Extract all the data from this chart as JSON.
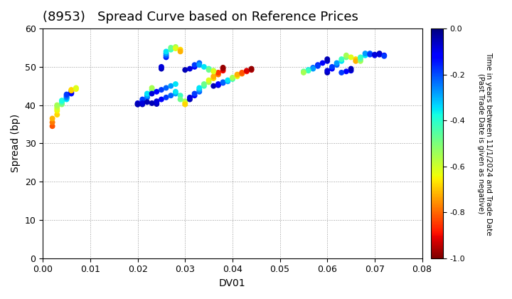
{
  "title": "(8953)   Spread Curve based on Reference Prices",
  "xlabel": "DV01",
  "ylabel": "Spread (bp)",
  "xlim": [
    0.0,
    0.08
  ],
  "ylim": [
    0,
    60
  ],
  "xticks": [
    0.0,
    0.01,
    0.02,
    0.03,
    0.04,
    0.05,
    0.06,
    0.07,
    0.08
  ],
  "yticks": [
    0,
    10,
    20,
    30,
    40,
    50,
    60
  ],
  "colorbar_label_line1": "Time in years between 11/1/2024 and Trade Date",
  "colorbar_label_line2": "(Past Trade Date is given as negative)",
  "cmap": "jet_r",
  "vmin": -1.0,
  "vmax": 0.0,
  "colorbar_ticks": [
    0.0,
    -0.2,
    -0.4,
    -0.6,
    -0.8,
    -1.0
  ],
  "points": [
    [
      0.002,
      34.5,
      -0.82
    ],
    [
      0.002,
      35.5,
      -0.78
    ],
    [
      0.002,
      36.5,
      -0.72
    ],
    [
      0.003,
      37.5,
      -0.68
    ],
    [
      0.003,
      38.5,
      -0.65
    ],
    [
      0.003,
      39.0,
      -0.62
    ],
    [
      0.003,
      39.5,
      -0.58
    ],
    [
      0.003,
      40.0,
      -0.55
    ],
    [
      0.004,
      40.2,
      -0.52
    ],
    [
      0.004,
      40.5,
      -0.48
    ],
    [
      0.004,
      40.8,
      -0.45
    ],
    [
      0.004,
      41.0,
      -0.42
    ],
    [
      0.004,
      41.2,
      -0.38
    ],
    [
      0.005,
      41.5,
      -0.35
    ],
    [
      0.005,
      41.8,
      -0.32
    ],
    [
      0.005,
      42.0,
      -0.28
    ],
    [
      0.005,
      42.2,
      -0.25
    ],
    [
      0.005,
      42.5,
      -0.22
    ],
    [
      0.005,
      42.8,
      -0.18
    ],
    [
      0.006,
      43.0,
      -0.15
    ],
    [
      0.006,
      43.2,
      -0.12
    ],
    [
      0.006,
      43.5,
      -0.1
    ],
    [
      0.006,
      43.8,
      -0.72
    ],
    [
      0.006,
      44.0,
      -0.68
    ],
    [
      0.007,
      44.2,
      -0.65
    ],
    [
      0.007,
      44.5,
      -0.62
    ],
    [
      0.02,
      40.2,
      -0.05
    ],
    [
      0.02,
      40.5,
      -0.08
    ],
    [
      0.021,
      41.0,
      -0.12
    ],
    [
      0.021,
      41.5,
      -0.18
    ],
    [
      0.022,
      42.0,
      -0.22
    ],
    [
      0.022,
      42.5,
      -0.28
    ],
    [
      0.022,
      43.0,
      -0.35
    ],
    [
      0.023,
      43.5,
      -0.42
    ],
    [
      0.023,
      44.0,
      -0.48
    ],
    [
      0.023,
      44.5,
      -0.55
    ],
    [
      0.024,
      40.3,
      -0.05
    ],
    [
      0.024,
      40.8,
      -0.08
    ],
    [
      0.025,
      49.5,
      -0.05
    ],
    [
      0.025,
      50.0,
      -0.08
    ],
    [
      0.026,
      52.5,
      -0.15
    ],
    [
      0.026,
      53.0,
      -0.22
    ],
    [
      0.026,
      53.5,
      -0.28
    ],
    [
      0.026,
      54.0,
      -0.35
    ],
    [
      0.027,
      54.5,
      -0.42
    ],
    [
      0.027,
      55.0,
      -0.48
    ],
    [
      0.028,
      55.2,
      -0.55
    ],
    [
      0.028,
      54.8,
      -0.62
    ],
    [
      0.029,
      54.5,
      -0.68
    ],
    [
      0.029,
      54.0,
      -0.72
    ],
    [
      0.02,
      40.2,
      -0.05
    ],
    [
      0.023,
      43.0,
      -0.08
    ],
    [
      0.024,
      43.5,
      -0.12
    ],
    [
      0.025,
      44.0,
      -0.18
    ],
    [
      0.026,
      44.5,
      -0.22
    ],
    [
      0.027,
      45.0,
      -0.28
    ],
    [
      0.028,
      45.5,
      -0.35
    ],
    [
      0.023,
      40.5,
      -0.05
    ],
    [
      0.024,
      41.0,
      -0.08
    ],
    [
      0.025,
      41.5,
      -0.12
    ],
    [
      0.026,
      42.0,
      -0.18
    ],
    [
      0.027,
      42.5,
      -0.22
    ],
    [
      0.028,
      43.0,
      -0.28
    ],
    [
      0.028,
      43.5,
      -0.35
    ],
    [
      0.029,
      42.5,
      -0.42
    ],
    [
      0.029,
      41.5,
      -0.48
    ],
    [
      0.03,
      41.0,
      -0.55
    ],
    [
      0.03,
      40.5,
      -0.62
    ],
    [
      0.03,
      40.2,
      -0.68
    ],
    [
      0.021,
      40.2,
      -0.05
    ],
    [
      0.021,
      40.5,
      -0.08
    ],
    [
      0.022,
      40.8,
      -0.05
    ],
    [
      0.031,
      41.5,
      -0.05
    ],
    [
      0.031,
      42.0,
      -0.08
    ],
    [
      0.032,
      42.5,
      -0.12
    ],
    [
      0.032,
      43.0,
      -0.18
    ],
    [
      0.033,
      43.5,
      -0.22
    ],
    [
      0.033,
      44.0,
      -0.28
    ],
    [
      0.033,
      44.5,
      -0.35
    ],
    [
      0.034,
      45.0,
      -0.42
    ],
    [
      0.034,
      45.5,
      -0.48
    ],
    [
      0.035,
      46.0,
      -0.55
    ],
    [
      0.035,
      46.5,
      -0.62
    ],
    [
      0.036,
      47.0,
      -0.68
    ],
    [
      0.036,
      47.5,
      -0.72
    ],
    [
      0.037,
      48.0,
      -0.78
    ],
    [
      0.037,
      48.5,
      -0.85
    ],
    [
      0.038,
      49.0,
      -0.9
    ],
    [
      0.038,
      49.5,
      -0.95
    ],
    [
      0.038,
      49.8,
      -0.98
    ],
    [
      0.036,
      45.0,
      -0.05
    ],
    [
      0.037,
      45.2,
      -0.08
    ],
    [
      0.037,
      45.5,
      -0.12
    ],
    [
      0.038,
      45.8,
      -0.18
    ],
    [
      0.038,
      46.0,
      -0.22
    ],
    [
      0.039,
      46.2,
      -0.28
    ],
    [
      0.039,
      46.5,
      -0.35
    ],
    [
      0.04,
      46.8,
      -0.42
    ],
    [
      0.04,
      47.0,
      -0.48
    ],
    [
      0.04,
      47.2,
      -0.55
    ],
    [
      0.041,
      47.5,
      -0.62
    ],
    [
      0.041,
      47.8,
      -0.68
    ],
    [
      0.041,
      48.0,
      -0.72
    ],
    [
      0.042,
      48.2,
      -0.78
    ],
    [
      0.042,
      48.5,
      -0.82
    ],
    [
      0.043,
      48.8,
      -0.88
    ],
    [
      0.043,
      49.0,
      -0.92
    ],
    [
      0.044,
      49.2,
      -0.95
    ],
    [
      0.044,
      49.5,
      -0.98
    ],
    [
      0.03,
      49.2,
      -0.05
    ],
    [
      0.031,
      49.5,
      -0.08
    ],
    [
      0.032,
      50.0,
      -0.12
    ],
    [
      0.032,
      50.5,
      -0.18
    ],
    [
      0.033,
      51.0,
      -0.22
    ],
    [
      0.033,
      50.5,
      -0.28
    ],
    [
      0.034,
      50.0,
      -0.35
    ],
    [
      0.035,
      49.5,
      -0.42
    ],
    [
      0.035,
      49.2,
      -0.48
    ],
    [
      0.036,
      49.0,
      -0.55
    ],
    [
      0.036,
      48.8,
      -0.62
    ],
    [
      0.06,
      48.5,
      -0.05
    ],
    [
      0.06,
      49.0,
      -0.08
    ],
    [
      0.061,
      49.5,
      -0.12
    ],
    [
      0.061,
      50.0,
      -0.18
    ],
    [
      0.062,
      50.5,
      -0.22
    ],
    [
      0.062,
      51.0,
      -0.28
    ],
    [
      0.063,
      51.5,
      -0.35
    ],
    [
      0.063,
      52.0,
      -0.42
    ],
    [
      0.064,
      52.5,
      -0.48
    ],
    [
      0.064,
      53.0,
      -0.55
    ],
    [
      0.065,
      52.5,
      -0.62
    ],
    [
      0.066,
      52.0,
      -0.68
    ],
    [
      0.066,
      51.5,
      -0.72
    ],
    [
      0.067,
      51.5,
      -0.55
    ],
    [
      0.067,
      52.0,
      -0.48
    ],
    [
      0.067,
      52.5,
      -0.42
    ],
    [
      0.068,
      53.0,
      -0.35
    ],
    [
      0.068,
      53.5,
      -0.28
    ],
    [
      0.069,
      53.5,
      -0.22
    ],
    [
      0.069,
      53.2,
      -0.18
    ],
    [
      0.07,
      53.0,
      -0.12
    ],
    [
      0.07,
      53.2,
      -0.08
    ],
    [
      0.071,
      53.5,
      -0.05
    ],
    [
      0.071,
      53.2,
      -0.08
    ],
    [
      0.072,
      53.0,
      -0.12
    ],
    [
      0.072,
      52.8,
      -0.18
    ],
    [
      0.06,
      51.5,
      -0.08
    ],
    [
      0.06,
      52.0,
      -0.05
    ],
    [
      0.059,
      51.0,
      -0.12
    ],
    [
      0.058,
      50.5,
      -0.15
    ],
    [
      0.058,
      50.2,
      -0.18
    ],
    [
      0.057,
      49.8,
      -0.22
    ],
    [
      0.057,
      49.5,
      -0.28
    ],
    [
      0.056,
      49.2,
      -0.35
    ],
    [
      0.056,
      49.0,
      -0.42
    ],
    [
      0.055,
      48.8,
      -0.48
    ],
    [
      0.055,
      48.5,
      -0.55
    ],
    [
      0.065,
      49.0,
      -0.08
    ],
    [
      0.065,
      49.5,
      -0.05
    ],
    [
      0.064,
      48.8,
      -0.12
    ],
    [
      0.063,
      48.5,
      -0.18
    ]
  ]
}
